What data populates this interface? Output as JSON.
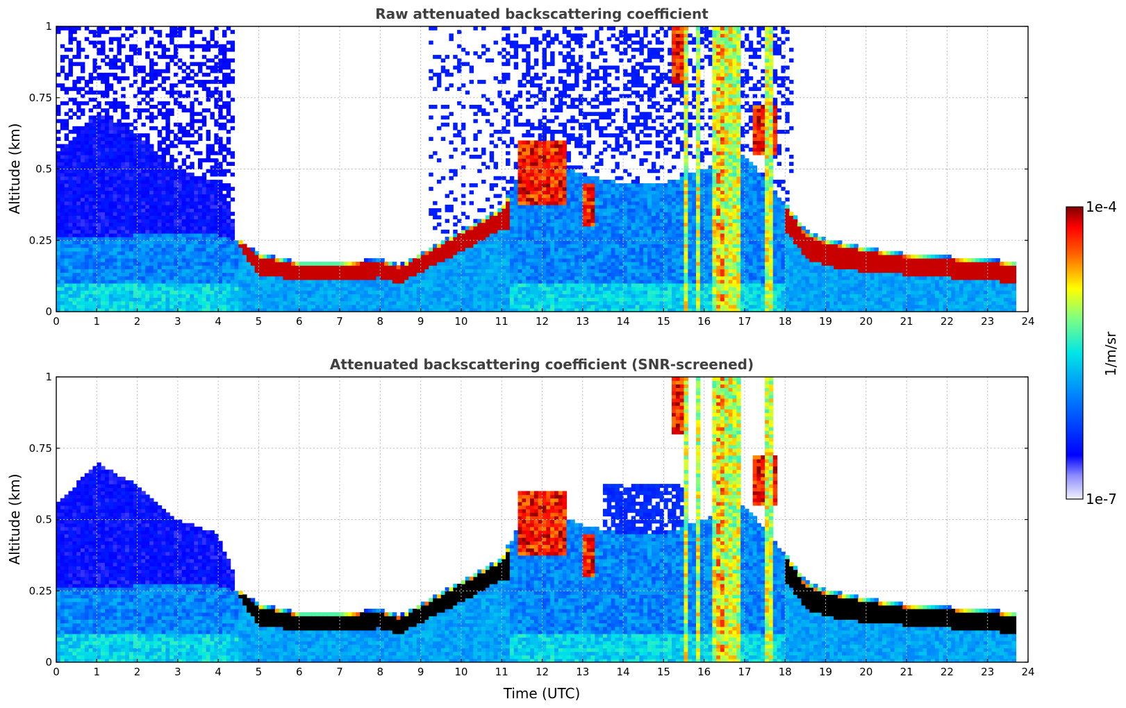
{
  "chart_data": [
    {
      "type": "heatmap",
      "title": "Raw attenuated backscattering coefficient",
      "xlabel": "",
      "ylabel": "Altitude (km)",
      "xlim": [
        0,
        24
      ],
      "ylim": [
        0,
        1
      ],
      "x_ticks": [
        "0",
        "1",
        "2",
        "3",
        "4",
        "5",
        "6",
        "7",
        "8",
        "9",
        "10",
        "11",
        "12",
        "13",
        "14",
        "15",
        "16",
        "17",
        "18",
        "19",
        "20",
        "21",
        "22",
        "23",
        "24"
      ],
      "y_ticks": [
        "0",
        "0.25",
        "0.5",
        "0.75",
        "1"
      ],
      "grid": true,
      "screened": false,
      "color_scale": "log",
      "data_end_time": 23.7,
      "boundary_layer_top_km": [
        [
          0,
          0.26
        ],
        [
          1,
          0.26
        ],
        [
          2,
          0.27
        ],
        [
          3,
          0.27
        ],
        [
          4,
          0.27
        ],
        [
          4.5,
          0.25
        ],
        [
          5,
          0.2
        ],
        [
          6,
          0.17
        ],
        [
          7,
          0.17
        ],
        [
          8,
          0.18
        ],
        [
          8.5,
          0.16
        ],
        [
          9,
          0.2
        ],
        [
          10,
          0.28
        ],
        [
          11,
          0.36
        ],
        [
          11.5,
          0.5
        ],
        [
          12,
          0.55
        ],
        [
          13,
          0.48
        ],
        [
          14,
          0.45
        ],
        [
          15,
          0.45
        ],
        [
          16,
          0.5
        ],
        [
          17,
          0.55
        ],
        [
          18,
          0.38
        ],
        [
          18.5,
          0.28
        ],
        [
          19,
          0.25
        ],
        [
          20,
          0.22
        ],
        [
          21,
          0.2
        ],
        [
          22,
          0.19
        ],
        [
          23,
          0.18
        ],
        [
          23.7,
          0.17
        ]
      ],
      "aerosol_layer_max_km": [
        [
          0,
          0.55
        ],
        [
          1,
          0.7
        ],
        [
          2,
          0.62
        ],
        [
          3,
          0.5
        ],
        [
          4,
          0.45
        ],
        [
          4.4,
          0.3
        ]
      ],
      "cloud_base_km": [
        [
          4.5,
          0.24
        ],
        [
          5,
          0.14
        ],
        [
          6,
          0.12
        ],
        [
          7,
          0.12
        ],
        [
          8,
          0.13
        ],
        [
          8.5,
          0.11
        ],
        [
          9,
          0.15
        ],
        [
          10,
          0.22
        ],
        [
          11,
          0.3
        ],
        [
          18,
          0.3
        ],
        [
          18.5,
          0.2
        ],
        [
          19,
          0.17
        ],
        [
          20,
          0.15
        ],
        [
          21,
          0.14
        ],
        [
          22,
          0.13
        ],
        [
          23,
          0.12
        ],
        [
          23.7,
          0.11
        ]
      ],
      "high_signal_cells": [
        {
          "t0": 11.4,
          "t1": 12.6,
          "z0": 0.38,
          "z1": 0.6
        },
        {
          "t0": 13.0,
          "t1": 13.3,
          "z0": 0.3,
          "z1": 0.45
        },
        {
          "t0": 15.2,
          "t1": 15.6,
          "z0": 0.8,
          "z1": 1.0
        },
        {
          "t0": 17.2,
          "t1": 17.8,
          "z0": 0.55,
          "z1": 0.72
        }
      ],
      "precipitation_columns_utc": [
        15.55,
        15.85,
        16.25,
        16.55,
        16.7,
        16.85,
        17.6
      ]
    },
    {
      "type": "heatmap",
      "title": "Attenuated backscattering coefficient (SNR-screened)",
      "xlabel": "Time (UTC)",
      "ylabel": "Altitude (km)",
      "xlim": [
        0,
        24
      ],
      "ylim": [
        0,
        1
      ],
      "x_ticks": [
        "0",
        "1",
        "2",
        "3",
        "4",
        "5",
        "6",
        "7",
        "8",
        "9",
        "10",
        "11",
        "12",
        "13",
        "14",
        "15",
        "16",
        "17",
        "18",
        "19",
        "20",
        "21",
        "22",
        "23",
        "24"
      ],
      "y_ticks": [
        "0",
        "0.25",
        "0.5",
        "0.75",
        "1"
      ],
      "grid": true,
      "screened": true,
      "color_scale": "log",
      "data_end_time": 23.7
    }
  ],
  "colorbar": {
    "label": "1/m/sr",
    "max_label": "1e-4",
    "min_label": "1e-7",
    "colormap": "jet",
    "saturation_color_screened": "#000000"
  }
}
